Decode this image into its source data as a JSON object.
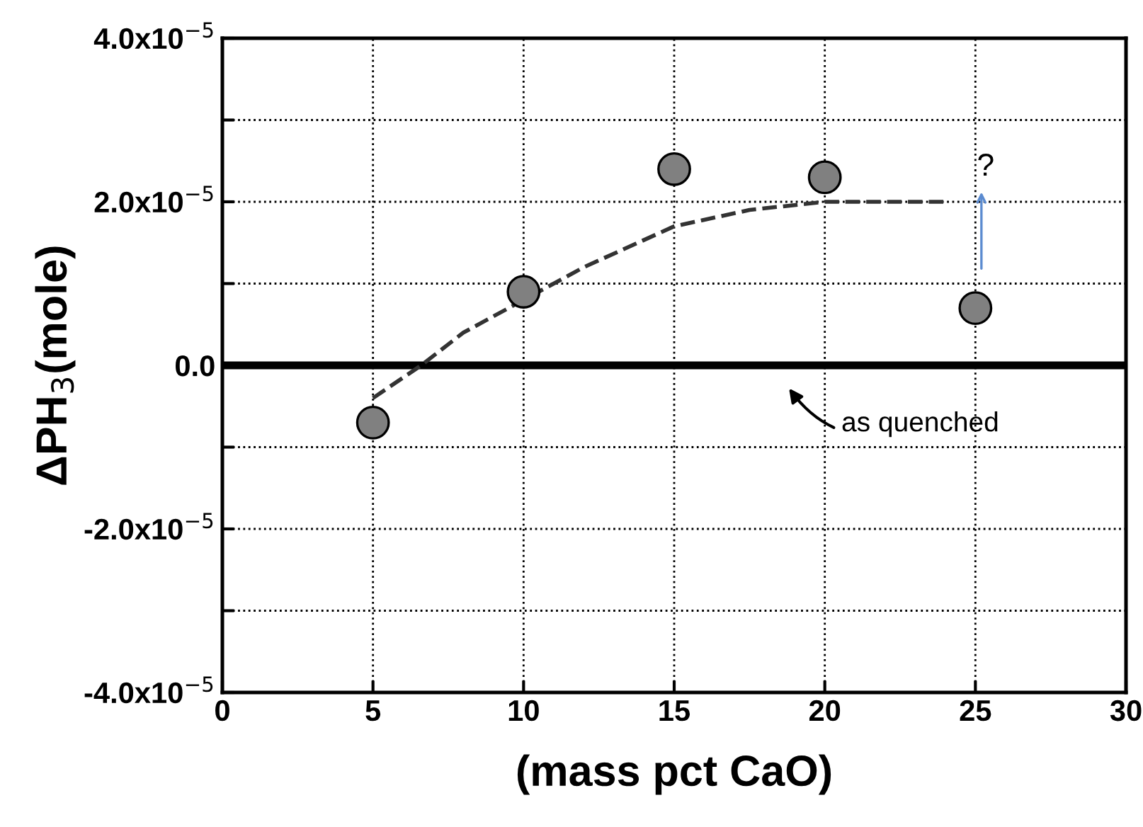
{
  "chart_data": {
    "type": "scatter",
    "xlabel": "(mass pct CaO)",
    "ylabel": "ΔPH$_{3}$(mole)",
    "xlim": [
      0,
      30
    ],
    "xticks": [
      0,
      5,
      10,
      15,
      20,
      25,
      30
    ],
    "ylim": [
      -4e-05,
      4e-05
    ],
    "yticks": [
      {
        "value": -4e-05,
        "label": "-4.0x10$^{−5}$"
      },
      {
        "value": -3e-05,
        "label": null
      },
      {
        "value": -2e-05,
        "label": "-2.0x10$^{−5}$"
      },
      {
        "value": -1e-05,
        "label": null
      },
      {
        "value": 0,
        "label": "0.0"
      },
      {
        "value": 1e-05,
        "label": null
      },
      {
        "value": 2e-05,
        "label": "2.0x10$^{−5}$"
      },
      {
        "value": 3e-05,
        "label": null
      },
      {
        "value": 4e-05,
        "label": "4.0x10$^{−5}$"
      }
    ],
    "grid": true,
    "marker": "circle",
    "series": [
      {
        "color": "#808080",
        "x": [
          5,
          10,
          15,
          20,
          25
        ],
        "values": [
          -7e-06,
          9e-06,
          2.4e-05,
          2.3e-05,
          7e-06
        ]
      },
      {
        "type": "line",
        "color": "#333333",
        "line_style": "dashed",
        "marker": "none",
        "x": [
          5,
          6.6,
          8,
          10,
          12,
          15,
          17.5,
          20,
          24.1
        ],
        "values": [
          -4e-06,
          0,
          4e-06,
          8e-06,
          1.2e-05,
          1.7e-05,
          1.9e-05,
          2e-05,
          2e-05
        ]
      }
    ],
    "ref_lines": [
      {
        "axis": "y",
        "value": 0,
        "color": "#000000"
      }
    ],
    "annotations": [
      "as quenched",
      "?"
    ]
  }
}
